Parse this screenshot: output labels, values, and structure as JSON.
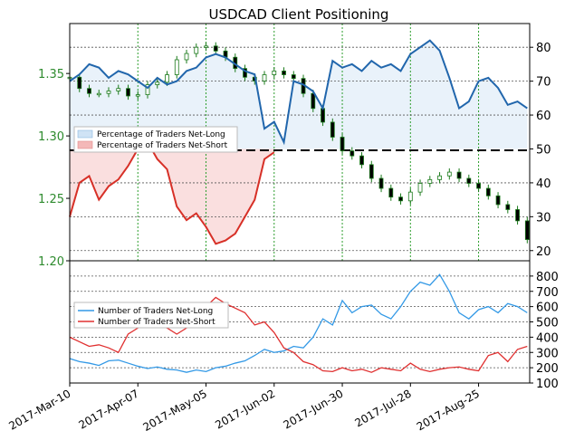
{
  "chart_data": [
    {
      "type": "line",
      "title": "USDCAD Client Positioning",
      "x_type": "date",
      "xlim": [
        "2017-03-10",
        "2017-09-15"
      ],
      "x_ticks": [
        "2017-Mar-10",
        "2017-Apr-07",
        "2017-May-05",
        "2017-Jun-02",
        "2017-Jun-30",
        "2017-Jul-28",
        "2017-Aug-25"
      ],
      "left_axis": {
        "ylim": [
          1.2,
          1.39
        ],
        "ticks": [
          "1.20",
          "1.25",
          "1.30",
          "1.35"
        ],
        "color": "#2e8b2e"
      },
      "right_axis": {
        "ylim": [
          17,
          87
        ],
        "ticks": [
          "20",
          "30",
          "40",
          "50",
          "60",
          "70",
          "80"
        ]
      },
      "grid": true,
      "legend": "left-center",
      "series": [
        {
          "name": "Percentage of Traders Net-Long",
          "axis": "right",
          "fill_color": "#cfe3f5",
          "x": [
            "2017-03-10",
            "2017-03-14",
            "2017-03-18",
            "2017-03-22",
            "2017-03-26",
            "2017-03-30",
            "2017-04-03",
            "2017-04-07",
            "2017-04-11",
            "2017-04-15",
            "2017-04-19",
            "2017-04-23",
            "2017-04-27",
            "2017-05-01",
            "2017-05-05",
            "2017-05-09",
            "2017-05-13",
            "2017-05-17",
            "2017-05-21",
            "2017-05-25",
            "2017-05-29",
            "2017-06-02",
            "2017-06-06",
            "2017-06-10",
            "2017-06-14",
            "2017-06-18",
            "2017-06-22",
            "2017-06-26",
            "2017-06-30",
            "2017-07-04",
            "2017-07-08",
            "2017-07-12",
            "2017-07-16",
            "2017-07-20",
            "2017-07-24",
            "2017-07-28",
            "2017-08-01",
            "2017-08-05",
            "2017-08-09",
            "2017-08-13",
            "2017-08-17",
            "2017-08-21",
            "2017-08-25",
            "2017-08-29",
            "2017-09-02",
            "2017-09-06",
            "2017-09-10",
            "2017-09-14"
          ],
          "values": [
            70,
            72,
            75,
            74,
            71,
            73,
            72,
            70,
            68,
            71,
            69,
            70,
            73,
            74,
            77,
            78,
            77,
            75,
            73,
            72,
            56,
            58,
            52,
            70,
            69,
            67,
            62,
            76,
            74,
            75,
            73,
            76,
            74,
            75,
            73,
            78,
            80,
            82,
            79,
            71,
            62,
            64,
            70,
            71,
            68,
            63,
            64,
            62
          ]
        },
        {
          "name": "Percentage of Traders Net-Short",
          "axis": "right",
          "fill_color": "#f4b8b8",
          "x": [
            "2017-03-10",
            "2017-03-14",
            "2017-03-18",
            "2017-03-22",
            "2017-03-26",
            "2017-03-30",
            "2017-04-03",
            "2017-04-07",
            "2017-04-11",
            "2017-04-15",
            "2017-04-19",
            "2017-04-23",
            "2017-04-27",
            "2017-05-01",
            "2017-05-05",
            "2017-05-09",
            "2017-05-13",
            "2017-05-17",
            "2017-05-21",
            "2017-05-25",
            "2017-05-29",
            "2017-06-02"
          ],
          "values": [
            30,
            40,
            42,
            35,
            39,
            41,
            45,
            50,
            52,
            47,
            44,
            33,
            29,
            31,
            27,
            22,
            23,
            25,
            30,
            35,
            47,
            49
          ]
        },
        {
          "name": "USDCAD",
          "axis": "left",
          "type": "candlestick",
          "color": "#1a7a1a",
          "x": [
            "2017-03-10",
            "2017-03-14",
            "2017-03-18",
            "2017-03-22",
            "2017-03-26",
            "2017-03-30",
            "2017-04-03",
            "2017-04-07",
            "2017-04-11",
            "2017-04-15",
            "2017-04-19",
            "2017-04-23",
            "2017-04-27",
            "2017-05-01",
            "2017-05-05",
            "2017-05-09",
            "2017-05-13",
            "2017-05-17",
            "2017-05-21",
            "2017-05-25",
            "2017-05-29",
            "2017-06-02",
            "2017-06-06",
            "2017-06-10",
            "2017-06-14",
            "2017-06-18",
            "2017-06-22",
            "2017-06-26",
            "2017-06-30",
            "2017-07-04",
            "2017-07-08",
            "2017-07-12",
            "2017-07-16",
            "2017-07-20",
            "2017-07-24",
            "2017-07-28",
            "2017-08-01",
            "2017-08-05",
            "2017-08-09",
            "2017-08-13",
            "2017-08-17",
            "2017-08-21",
            "2017-08-25",
            "2017-08-29",
            "2017-09-02",
            "2017-09-06",
            "2017-09-10",
            "2017-09-14"
          ],
          "values": [
            1.347,
            1.338,
            1.334,
            1.334,
            1.336,
            1.338,
            1.332,
            1.333,
            1.341,
            1.343,
            1.349,
            1.361,
            1.366,
            1.371,
            1.372,
            1.368,
            1.363,
            1.354,
            1.347,
            1.344,
            1.349,
            1.352,
            1.349,
            1.346,
            1.334,
            1.322,
            1.311,
            1.299,
            1.288,
            1.284,
            1.277,
            1.266,
            1.258,
            1.251,
            1.248,
            1.255,
            1.262,
            1.265,
            1.268,
            1.271,
            1.266,
            1.262,
            1.258,
            1.252,
            1.245,
            1.241,
            1.232,
            1.217
          ]
        }
      ]
    },
    {
      "type": "line",
      "x_type": "date",
      "xlim": [
        "2017-03-10",
        "2017-09-15"
      ],
      "right_axis": {
        "ylim": [
          100,
          900
        ],
        "ticks": [
          "100",
          "200",
          "300",
          "400",
          "500",
          "600",
          "700",
          "800"
        ]
      },
      "grid": true,
      "legend": "left-center",
      "series": [
        {
          "name": "Number of Traders Net-Long",
          "color": "#3399e6",
          "x": [
            "2017-03-10",
            "2017-03-14",
            "2017-03-18",
            "2017-03-22",
            "2017-03-26",
            "2017-03-30",
            "2017-04-03",
            "2017-04-07",
            "2017-04-11",
            "2017-04-15",
            "2017-04-19",
            "2017-04-23",
            "2017-04-27",
            "2017-05-01",
            "2017-05-05",
            "2017-05-09",
            "2017-05-13",
            "2017-05-17",
            "2017-05-21",
            "2017-05-25",
            "2017-05-29",
            "2017-06-02",
            "2017-06-06",
            "2017-06-10",
            "2017-06-14",
            "2017-06-18",
            "2017-06-22",
            "2017-06-26",
            "2017-06-30",
            "2017-07-04",
            "2017-07-08",
            "2017-07-12",
            "2017-07-16",
            "2017-07-20",
            "2017-07-24",
            "2017-07-28",
            "2017-08-01",
            "2017-08-05",
            "2017-08-09",
            "2017-08-13",
            "2017-08-17",
            "2017-08-21",
            "2017-08-25",
            "2017-08-29",
            "2017-09-02",
            "2017-09-06",
            "2017-09-10",
            "2017-09-14"
          ],
          "values": [
            260,
            240,
            230,
            215,
            245,
            250,
            230,
            210,
            195,
            205,
            190,
            185,
            170,
            185,
            175,
            200,
            210,
            230,
            245,
            280,
            320,
            300,
            310,
            340,
            330,
            400,
            520,
            480,
            640,
            560,
            600,
            610,
            550,
            520,
            600,
            700,
            760,
            740,
            810,
            700,
            560,
            520,
            580,
            600,
            560,
            620,
            600,
            560
          ]
        },
        {
          "name": "Number of Traders Net-Short",
          "color": "#e03030",
          "x": [
            "2017-03-10",
            "2017-03-14",
            "2017-03-18",
            "2017-03-22",
            "2017-03-26",
            "2017-03-30",
            "2017-04-03",
            "2017-04-07",
            "2017-04-11",
            "2017-04-15",
            "2017-04-19",
            "2017-04-23",
            "2017-04-27",
            "2017-05-01",
            "2017-05-05",
            "2017-05-09",
            "2017-05-13",
            "2017-05-17",
            "2017-05-21",
            "2017-05-25",
            "2017-05-29",
            "2017-06-02",
            "2017-06-06",
            "2017-06-10",
            "2017-06-14",
            "2017-06-18",
            "2017-06-22",
            "2017-06-26",
            "2017-06-30",
            "2017-07-04",
            "2017-07-08",
            "2017-07-12",
            "2017-07-16",
            "2017-07-20",
            "2017-07-24",
            "2017-07-28",
            "2017-08-01",
            "2017-08-05",
            "2017-08-09",
            "2017-08-13",
            "2017-08-17",
            "2017-08-21",
            "2017-08-25",
            "2017-08-29",
            "2017-09-02",
            "2017-09-06",
            "2017-09-10",
            "2017-09-14"
          ],
          "values": [
            400,
            370,
            340,
            350,
            330,
            300,
            420,
            460,
            510,
            490,
            460,
            420,
            460,
            500,
            600,
            660,
            620,
            590,
            560,
            480,
            500,
            430,
            330,
            300,
            240,
            220,
            180,
            175,
            200,
            180,
            190,
            170,
            200,
            190,
            180,
            230,
            190,
            175,
            190,
            200,
            205,
            190,
            180,
            280,
            300,
            240,
            320,
            340
          ]
        }
      ]
    }
  ]
}
